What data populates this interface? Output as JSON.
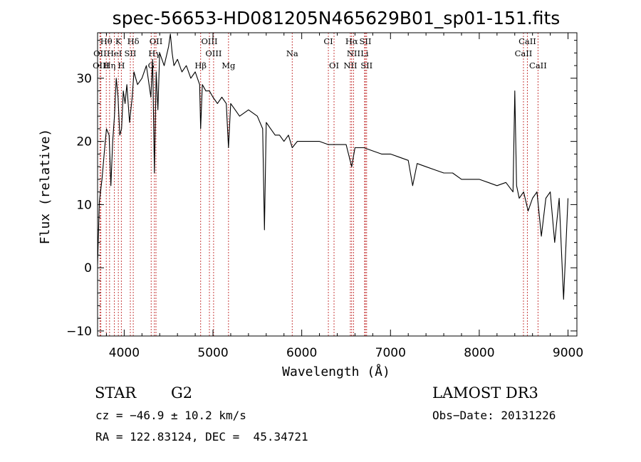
{
  "chart_data": {
    "type": "line",
    "title": "spec-56653-HD081205N465629B01_sp01-151.fits",
    "xlabel": "Wavelength (Å)",
    "ylabel": "Flux (relative)",
    "xlim": [
      3700,
      9100
    ],
    "ylim": [
      -10.8,
      37.2
    ],
    "xticks": [
      4000,
      5000,
      6000,
      7000,
      8000,
      9000
    ],
    "yticks": [
      -10,
      0,
      10,
      20,
      30
    ],
    "grid": false,
    "legend": "none",
    "series": [
      {
        "x": [
          3700,
          3720,
          3750,
          3780,
          3800,
          3830,
          3850,
          3870,
          3890,
          3910,
          3930,
          3950,
          3970,
          3990,
          4010,
          4030,
          4060,
          4090,
          4110,
          4150,
          4200,
          4250,
          4300,
          4320,
          4340,
          4360,
          4380,
          4400,
          4450,
          4500,
          4520,
          4540,
          4560,
          4600,
          4650,
          4700,
          4750,
          4800,
          4850,
          4861,
          4880,
          4920,
          4960,
          5000,
          5050,
          5100,
          5150,
          5175,
          5200,
          5250,
          5300,
          5400,
          5500,
          5560,
          5580,
          5600,
          5650,
          5700,
          5750,
          5800,
          5850,
          5893,
          5950,
          6000,
          6100,
          6200,
          6300,
          6400,
          6500,
          6563,
          6600,
          6700,
          6800,
          6900,
          7000,
          7100,
          7200,
          7250,
          7300,
          7400,
          7500,
          7600,
          7700,
          7800,
          7900,
          8000,
          8100,
          8200,
          8300,
          8380,
          8400,
          8420,
          8450,
          8500,
          8550,
          8600,
          8650,
          8700,
          8750,
          8800,
          8850,
          8900,
          8950,
          9000
        ],
        "y": [
          0.5,
          10.5,
          14,
          19,
          22,
          21,
          13,
          20,
          24,
          30,
          27,
          21,
          22,
          28,
          26,
          29,
          23,
          27,
          31,
          29,
          30,
          32,
          27,
          33,
          15,
          31,
          25,
          34,
          32,
          35,
          37,
          34,
          32,
          33,
          31,
          32,
          30,
          31,
          29,
          22,
          29,
          28,
          28,
          27,
          26,
          27,
          26,
          19,
          26,
          25,
          24,
          25,
          24,
          22,
          6,
          23,
          22,
          21,
          21,
          20,
          21,
          19,
          20,
          20,
          20,
          20,
          19.5,
          19.5,
          19.5,
          16,
          19,
          19,
          18.5,
          18,
          18,
          17.5,
          17,
          13,
          16.5,
          16,
          15.5,
          15,
          15,
          14,
          14,
          14,
          13.5,
          13,
          13.5,
          12,
          28,
          13,
          11,
          12,
          9,
          11,
          12,
          5,
          11,
          12,
          4,
          11,
          -5,
          11
        ]
      }
    ],
    "annotations": [
      {
        "text": "Hθ",
        "x": 3798,
        "row": 1
      },
      {
        "text": "K",
        "x": 3934,
        "row": 1
      },
      {
        "text": "Hδ",
        "x": 4102,
        "row": 1
      },
      {
        "text": "OII",
        "x": 4358,
        "row": 1
      },
      {
        "text": "OIII",
        "x": 4960,
        "row": 1
      },
      {
        "text": "CI",
        "x": 6300,
        "row": 1
      },
      {
        "text": "Hα",
        "x": 6563,
        "row": 1
      },
      {
        "text": "SII",
        "x": 6717,
        "row": 1
      },
      {
        "text": "CaII",
        "x": 8542,
        "row": 1
      },
      {
        "text": "OII",
        "x": 3727,
        "row": 2
      },
      {
        "text": "HeI",
        "x": 3889,
        "row": 2
      },
      {
        "text": "SII",
        "x": 4069,
        "row": 2
      },
      {
        "text": "Hγ",
        "x": 4340,
        "row": 2
      },
      {
        "text": "OIII",
        "x": 5007,
        "row": 2
      },
      {
        "text": "Na",
        "x": 5893,
        "row": 2
      },
      {
        "text": "NII",
        "x": 6584,
        "row": 2
      },
      {
        "text": "Li",
        "x": 6708,
        "row": 2
      },
      {
        "text": "CaII",
        "x": 8498,
        "row": 2
      },
      {
        "text": "OIII",
        "x": 3737,
        "row": 3
      },
      {
        "text": "Hη",
        "x": 3835,
        "row": 3
      },
      {
        "text": "H",
        "x": 3968,
        "row": 3
      },
      {
        "text": "G",
        "x": 4304,
        "row": 3
      },
      {
        "text": "Hβ",
        "x": 4861,
        "row": 3
      },
      {
        "text": "Mg",
        "x": 5175,
        "row": 3
      },
      {
        "text": "OI",
        "x": 6364,
        "row": 3
      },
      {
        "text": "NII",
        "x": 6548,
        "row": 3
      },
      {
        "text": "SII",
        "x": 6731,
        "row": 3
      },
      {
        "text": "CaII",
        "x": 8662,
        "row": 3
      }
    ],
    "marker_lines": [
      3727,
      3737,
      3798,
      3835,
      3889,
      3934,
      3968,
      4069,
      4102,
      4304,
      4340,
      4358,
      4861,
      4960,
      5007,
      5175,
      5893,
      6300,
      6364,
      6548,
      6563,
      6584,
      6708,
      6717,
      6731,
      8498,
      8542,
      8662
    ],
    "marker_color": "#c84040"
  },
  "info": {
    "class": "STAR",
    "subclass": "G2",
    "cz": "cz = −46.9 ± 10.2 km/s",
    "coords": "RA = 122.83124, DEC =  45.34721",
    "survey": "LAMOST DR3",
    "obs_date": "Obs−Date: 20131226"
  }
}
